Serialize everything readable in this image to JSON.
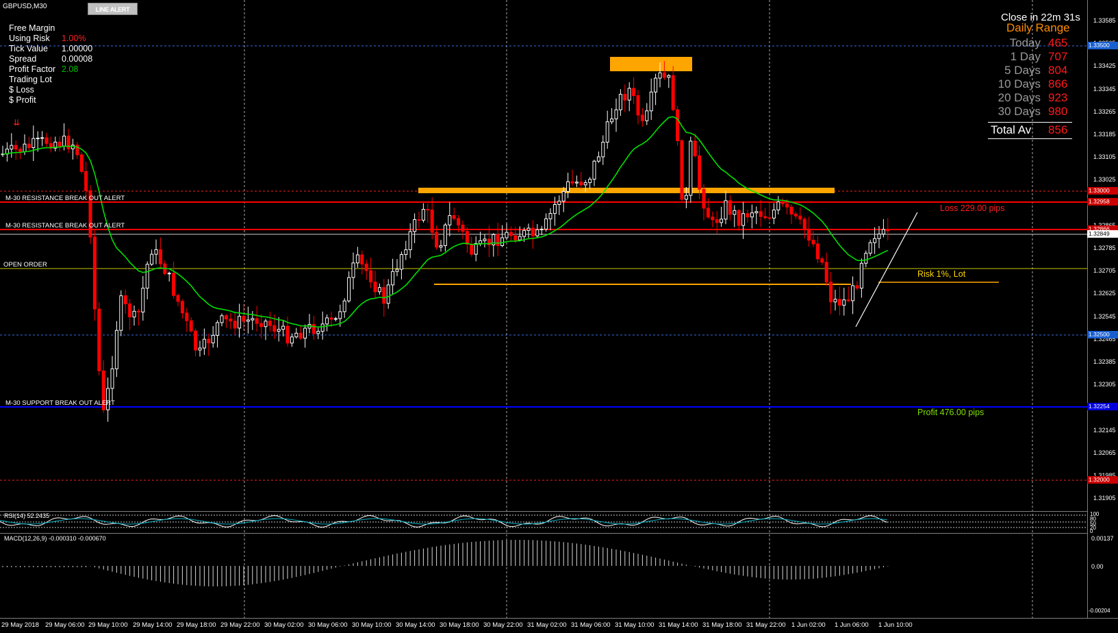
{
  "window": {
    "symbol_label": "GBPUSD,M30",
    "line_alert_button": "LINE ALERT"
  },
  "info_panel": [
    {
      "label": "Free Margin",
      "value": "",
      "color": "#00c000"
    },
    {
      "label": "Using Risk",
      "value": "1.00%",
      "color": "#ff2020"
    },
    {
      "label": "Tick Value",
      "value": "1.00000",
      "color": "#ffffff"
    },
    {
      "label": "Spread",
      "value": "0.00008",
      "color": "#ffffff"
    },
    {
      "label": "Profit Factor",
      "value": "2.08",
      "color": "#00c000"
    },
    {
      "label": "Trading Lot",
      "value": "",
      "color": "#ff2020"
    },
    {
      "label": "$ Loss",
      "value": "",
      "color": "#ff2020"
    },
    {
      "label": "$ Profit",
      "value": "",
      "color": "#00c000"
    }
  ],
  "range_panel": {
    "close_timer": "Close in 22m 31s",
    "title": "Daily Range",
    "title_color": "#ff8c00",
    "rows": [
      {
        "label": "Today",
        "value": "465"
      },
      {
        "label": "1 Day",
        "value": "707"
      },
      {
        "label": "5 Days",
        "value": "804"
      },
      {
        "label": "10 Days",
        "value": "866"
      },
      {
        "label": "20 Days",
        "value": "923"
      },
      {
        "label": "30 Days",
        "value": "980"
      }
    ],
    "total_label": "Total Av",
    "total_value": "856"
  },
  "line_labels": {
    "resistance_1": "M-30 RESISTANCE BREAK OUT ALERT",
    "resistance_2": "M-30 RESISTANCE BREAK OUT ALERT",
    "open_order": "OPEN ORDER",
    "support": "M-30 SUPPORT BREAK OUT ALERT"
  },
  "trade_labels": {
    "loss": "Loss 229.00 pips",
    "risk": "Risk 1%, Lot",
    "profit": "Profit 476.00 pips"
  },
  "price_axis": [
    "1.33585",
    "1.33505",
    "1.33425",
    "1.33345",
    "1.33265",
    "1.33185",
    "1.33105",
    "1.33025",
    "1.32945",
    "1.32865",
    "1.32785",
    "1.32705",
    "1.32625",
    "1.32545",
    "1.32465",
    "1.32385",
    "1.32305",
    "1.32225",
    "1.32145",
    "1.32065",
    "1.31985",
    "1.31905"
  ],
  "price_badges": [
    {
      "text": "1.33500",
      "bg": "#1a5fd0",
      "fg": "#ffffff"
    },
    {
      "text": "1.33000",
      "bg": "#cc0000",
      "fg": "#ffffff"
    },
    {
      "text": "1.32958",
      "bg": "#cc0000",
      "fg": "#ffffff"
    },
    {
      "text": "1.32866",
      "bg": "#cc0000",
      "fg": "#ffffff"
    },
    {
      "text": "1.32849",
      "bg": "#ffffff",
      "fg": "#000000"
    },
    {
      "text": "1.32500",
      "bg": "#1a5fd0",
      "fg": "#ffffff"
    },
    {
      "text": "1.32254",
      "bg": "#0000dd",
      "fg": "#ffffff"
    },
    {
      "text": "1.32000",
      "bg": "#cc0000",
      "fg": "#ffffff"
    }
  ],
  "time_axis": [
    "29 May 2018",
    "29 May 06:00",
    "29 May 10:00",
    "29 May 14:00",
    "29 May 18:00",
    "29 May 22:00",
    "30 May 02:00",
    "30 May 06:00",
    "30 May 10:00",
    "30 May 14:00",
    "30 May 18:00",
    "30 May 22:00",
    "31 May 02:00",
    "31 May 06:00",
    "31 May 10:00",
    "31 May 14:00",
    "31 May 18:00",
    "31 May 22:00",
    "1 Jun 02:00",
    "1 Jun 06:00",
    "1 Jun 10:00"
  ],
  "rsi": {
    "label": "RSI(14) 52.2435",
    "levels": [
      "100",
      "80",
      "50",
      "20",
      "0"
    ]
  },
  "macd": {
    "label": "MACD(12,26,9) -0.000310 -0.000670",
    "levels": [
      "0.00137",
      "0.00",
      "-0.00204"
    ]
  },
  "colors": {
    "background": "#000000",
    "bull_candle": "#ffffff",
    "bear_candle": "#ff0000",
    "ma_line": "#00e000",
    "resistance_line": "#ff0000",
    "support_line": "#0000ff",
    "zone_fill": "#ffa500",
    "open_order_line": "#c8c800"
  }
}
